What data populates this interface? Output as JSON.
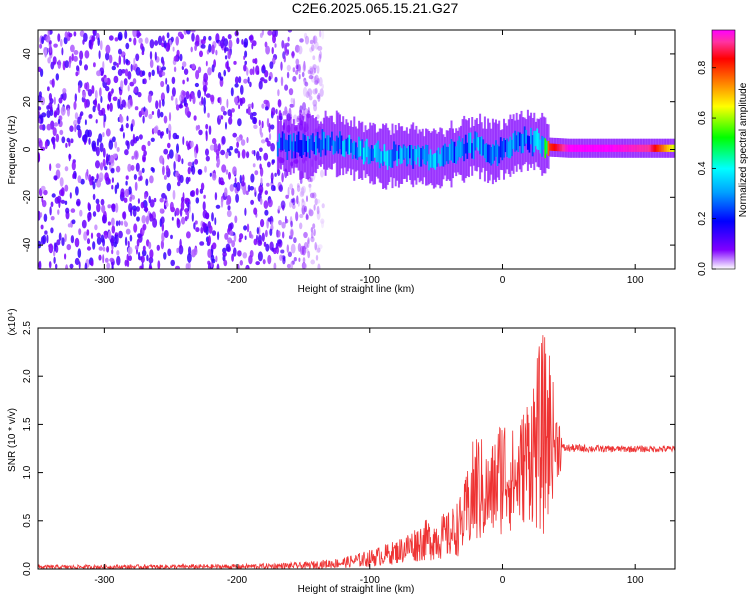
{
  "title": "C2E6.2025.065.15.21.G27",
  "chart_data": [
    {
      "type": "heatmap",
      "xlabel": "Height of straight line (km)",
      "ylabel": "Frequency (Hz)",
      "xlim": [
        -350,
        130
      ],
      "ylim": [
        -50,
        50
      ],
      "xticks": [
        -300,
        -200,
        -100,
        0,
        100
      ],
      "yticks": [
        -40,
        -20,
        0,
        20,
        40
      ],
      "colorbar": {
        "label": "Normalized spectral amplitude",
        "range": [
          0.0,
          0.95
        ],
        "ticks": [
          0.0,
          0.2,
          0.4,
          0.6,
          0.8
        ],
        "colormap": [
          "#ff00ff",
          "#ff33a0",
          "#ff0000",
          "#ff8000",
          "#ffff00",
          "#00ff00",
          "#00ffff",
          "#00a0ff",
          "#0000ff",
          "#8000ff",
          "#ffffff"
        ]
      },
      "ridge": {
        "x": [
          -170,
          -150,
          -130,
          -110,
          -90,
          -70,
          -50,
          -40,
          -30,
          -20,
          -10,
          0,
          10,
          20,
          30,
          35,
          50,
          80,
          110,
          130
        ],
        "y": [
          2,
          1,
          3,
          0,
          -3,
          -2,
          -4,
          -2,
          0,
          2,
          -1,
          0,
          3,
          4,
          2,
          1,
          0.5,
          0.5,
          0.5,
          0.5
        ],
        "peak_amplitude": [
          0.25,
          0.3,
          0.3,
          0.35,
          0.35,
          0.3,
          0.35,
          0.3,
          0.3,
          0.35,
          0.3,
          0.25,
          0.3,
          0.3,
          0.35,
          0.8,
          0.95,
          0.95,
          0.9,
          0.6
        ]
      },
      "noise_region_x": [
        -350,
        -135
      ]
    },
    {
      "type": "line",
      "xlabel": "Height of straight line (km)",
      "ylabel": "SNR (10 * v/v)",
      "y_multiplier": "(x10⁴)",
      "xlim": [
        -350,
        130
      ],
      "ylim": [
        0,
        2.5
      ],
      "xticks": [
        -300,
        -200,
        -100,
        0,
        100
      ],
      "yticks": [
        0.0,
        0.5,
        1.0,
        1.5,
        2.0,
        2.5
      ],
      "color": "#ee3333",
      "envelope": {
        "x": [
          -350,
          -200,
          -150,
          -120,
          -100,
          -80,
          -60,
          -40,
          -30,
          -20,
          -10,
          0,
          10,
          20,
          30,
          35,
          40,
          44,
          45,
          80,
          130
        ],
        "min": [
          0.0,
          0.0,
          0.0,
          0.01,
          0.02,
          0.05,
          0.08,
          0.1,
          0.15,
          0.2,
          0.3,
          0.35,
          0.4,
          0.5,
          0.3,
          0.5,
          0.9,
          1.0,
          1.21,
          1.21,
          1.21
        ],
        "max": [
          0.04,
          0.05,
          0.07,
          0.12,
          0.2,
          0.3,
          0.5,
          0.6,
          0.8,
          1.5,
          1.2,
          1.7,
          1.4,
          1.9,
          2.45,
          2.4,
          1.7,
          1.6,
          1.3,
          1.28,
          1.28
        ]
      }
    }
  ]
}
